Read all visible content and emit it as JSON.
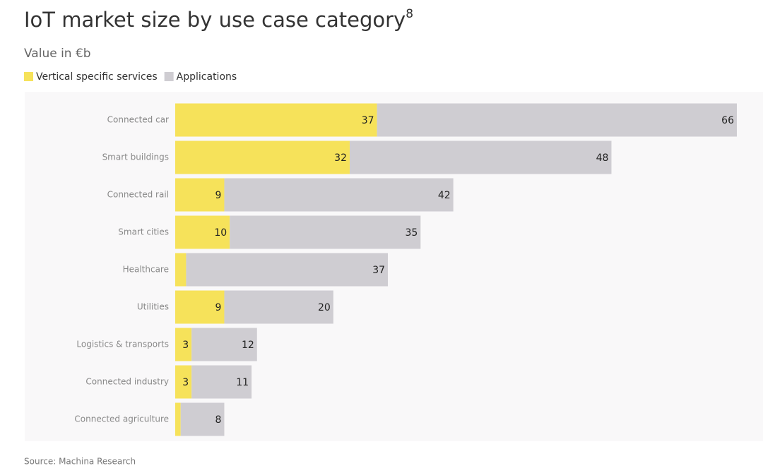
{
  "chart_data": {
    "type": "stacked-bar-horizontal",
    "title": "IoT market size by use case category",
    "title_sup": "8",
    "subtitle": "Value in €b",
    "source": "Source: Machina Research",
    "categories": [
      "Connected car",
      "Smart buildings",
      "Connected rail",
      "Smart cities",
      "Healthcare",
      "Utilities",
      "Logistics & transports",
      "Connected industry",
      "Connected agriculture"
    ],
    "series": [
      {
        "name": "Vertical specific services",
        "color": "#f6e25a",
        "values": [
          37,
          32,
          9,
          10,
          2,
          9,
          3,
          3,
          1
        ]
      },
      {
        "name": "Applications",
        "color": "#cfcdd2",
        "values": [
          66,
          48,
          42,
          35,
          37,
          20,
          12,
          11,
          8
        ]
      }
    ]
  }
}
